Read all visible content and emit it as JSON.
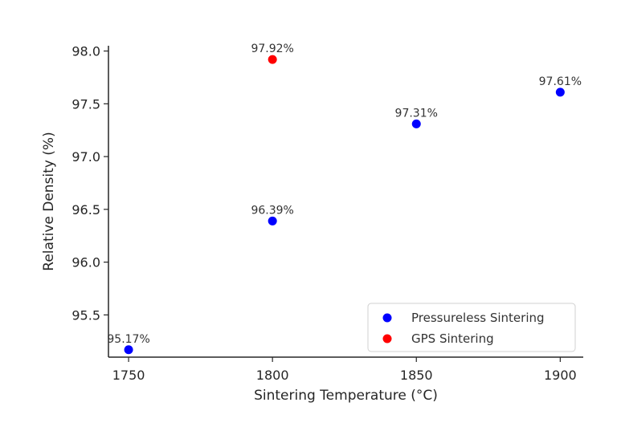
{
  "chart_data": {
    "type": "scatter",
    "title": "",
    "xlabel": "Sintering Temperature (°C)",
    "ylabel": "Relative Density (%)",
    "xlim": [
      1743,
      1908
    ],
    "ylim": [
      95.1,
      98.05
    ],
    "xticks": [
      1750,
      1800,
      1850,
      1900
    ],
    "yticks": [
      95.5,
      96.0,
      96.5,
      97.0,
      97.5,
      98.0
    ],
    "xtick_labels": [
      "1750",
      "1800",
      "1850",
      "1900"
    ],
    "ytick_labels": [
      "95.5",
      "96.0",
      "96.5",
      "97.0",
      "97.5",
      "98.0"
    ],
    "grid": false,
    "legend_position": "lower-right",
    "series": [
      {
        "name": "Pressureless Sintering",
        "color": "#0000ff",
        "x": [
          1750,
          1800,
          1850,
          1900
        ],
        "y": [
          95.17,
          96.39,
          97.31,
          97.61
        ],
        "labels": [
          "95.17%",
          "96.39%",
          "97.31%",
          "97.61%"
        ]
      },
      {
        "name": "GPS Sintering",
        "color": "#ff0000",
        "x": [
          1800
        ],
        "y": [
          97.92
        ],
        "labels": [
          "97.92%"
        ]
      }
    ]
  }
}
